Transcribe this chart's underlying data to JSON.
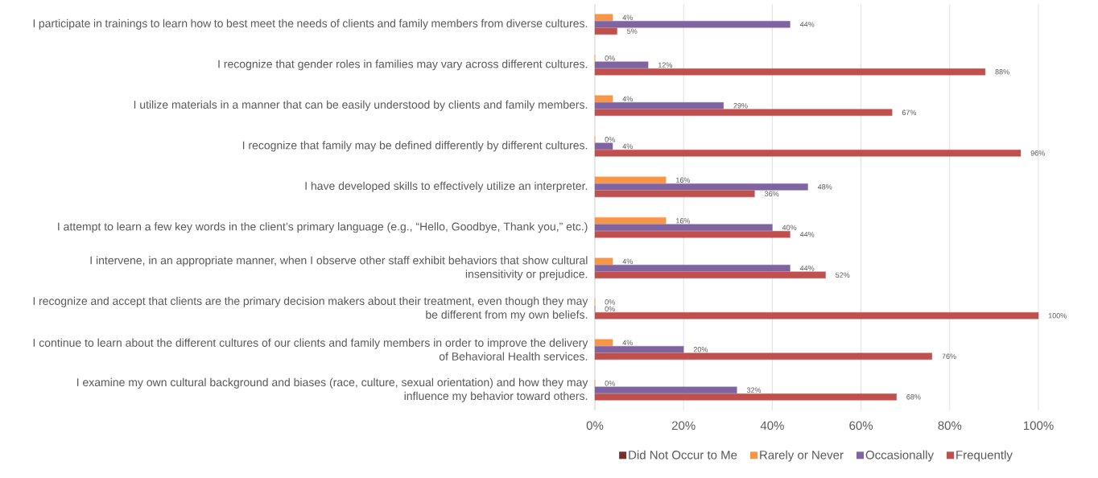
{
  "chart_data": {
    "type": "bar",
    "orientation": "horizontal",
    "categories": [
      "I participate in trainings to learn how to best meet the needs of clients and family members from diverse cultures.",
      "I recognize that gender roles in families may vary across different cultures.",
      "I utilize materials in a manner that can be easily understood by clients and family members.",
      "I recognize that family may be defined differently by different cultures.",
      "I have developed skills to effectively utilize an interpreter.",
      "I attempt to learn a few key words in the client’s primary language (e.g., “Hello, Goodbye, Thank you,” etc.)",
      "I intervene, in an appropriate manner, when I observe other staff exhibit behaviors that show cultural insensitivity or prejudice.",
      "I recognize and accept that clients are the primary decision makers about their treatment, even though they may be different from my own beliefs.",
      "I continue to learn about the different cultures of our clients and family members in order to improve the delivery of Behavioral Health services.",
      "I examine my own cultural background and biases (race, culture, sexual orientation) and how they may influence my behavior toward others."
    ],
    "series": [
      {
        "name": "Did Not Occur to Me",
        "color": "#7b2c2c",
        "values": [
          null,
          null,
          null,
          null,
          null,
          null,
          null,
          null,
          null,
          null
        ]
      },
      {
        "name": "Rarely or Never",
        "color": "#f79646",
        "values": [
          4,
          0,
          4,
          0,
          16,
          16,
          4,
          0,
          4,
          0
        ],
        "value_labels": [
          "4%",
          "0%",
          "4%",
          "0%",
          "16%",
          "16%",
          "4%",
          "0%",
          "4%",
          "0%"
        ]
      },
      {
        "name": "Occasionally",
        "color": "#8064a2",
        "values": [
          44,
          12,
          29,
          4,
          48,
          40,
          44,
          0,
          20,
          32
        ],
        "value_labels": [
          "44%",
          "12%",
          "29%",
          "4%",
          "48%",
          "40%",
          "44%",
          "0%",
          "20%",
          "32%"
        ]
      },
      {
        "name": "Frequently",
        "color": "#c0504d",
        "values": [
          5,
          88,
          67,
          96,
          36,
          44,
          52,
          100,
          76,
          68
        ],
        "value_labels": [
          "5%",
          "88%",
          "67%",
          "96%",
          "36%",
          "44%",
          "52%",
          "100%",
          "76%",
          "68%"
        ]
      }
    ],
    "xlim": [
      0,
      100
    ],
    "xticks": [
      {
        "value": 0,
        "label": "0%"
      },
      {
        "value": 20,
        "label": "20%"
      },
      {
        "value": 40,
        "label": "40%"
      },
      {
        "value": 60,
        "label": "60%"
      },
      {
        "value": 80,
        "label": "80%"
      },
      {
        "value": 100,
        "label": "100%"
      }
    ],
    "grid": "x",
    "legend": "bottom"
  }
}
